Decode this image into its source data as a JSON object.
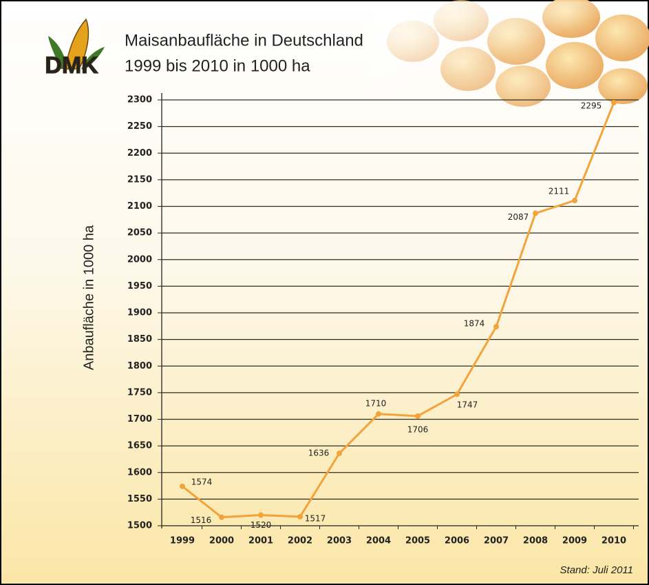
{
  "logo": "DMK",
  "chart_data": {
    "type": "line",
    "title": "Maisanbaufläche in Deutschland",
    "subtitle": "1999 bis 2010 in 1000 ha",
    "y_label": "Anbaufläche in 1000 ha",
    "note": "Stand: Juli 2011",
    "categories": [
      "1999",
      "2000",
      "2001",
      "2002",
      "2003",
      "2004",
      "2005",
      "2006",
      "2007",
      "2008",
      "2009",
      "2010"
    ],
    "series": [
      {
        "color": "#f2a33a",
        "values": [
          1574,
          1516,
          1520,
          1517,
          1636,
          1710,
          1706,
          1747,
          1874,
          2087,
          2111,
          2295
        ]
      }
    ],
    "ylim": [
      1500,
      2300
    ],
    "yticks": [
      1500,
      1550,
      1600,
      1650,
      1700,
      1750,
      1800,
      1850,
      1900,
      1950,
      2000,
      2050,
      2100,
      2150,
      2200,
      2250,
      2300
    ],
    "grid": true
  }
}
